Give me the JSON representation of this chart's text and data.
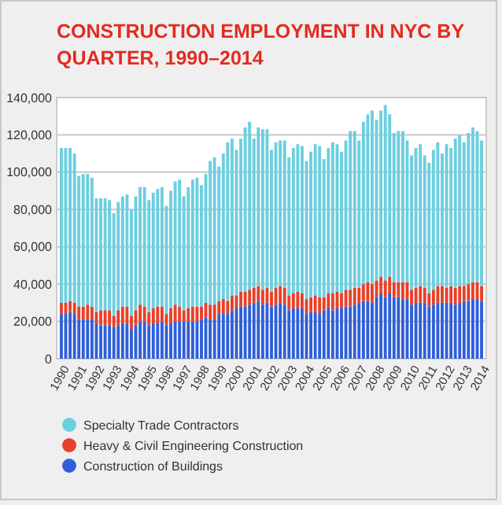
{
  "chart_data": {
    "type": "bar",
    "stacked": true,
    "title": "CONSTRUCTION EMPLOYMENT IN NYC BY QUARTER, 1990–2014",
    "categories": [
      "1990",
      null,
      null,
      null,
      "1991",
      null,
      null,
      null,
      "1992",
      null,
      null,
      null,
      "1993",
      null,
      null,
      null,
      "1994",
      null,
      null,
      null,
      "1995",
      null,
      null,
      null,
      "1996",
      null,
      null,
      null,
      "1997",
      null,
      null,
      null,
      "1998",
      null,
      null,
      null,
      "1999",
      null,
      null,
      null,
      "2000",
      null,
      null,
      null,
      "2001",
      null,
      null,
      null,
      "2002",
      null,
      null,
      null,
      "2003",
      null,
      null,
      null,
      "2004",
      null,
      null,
      null,
      "2005",
      null,
      null,
      null,
      "2006",
      null,
      null,
      null,
      "2007",
      null,
      null,
      null,
      "2008",
      null,
      null,
      null,
      "2009",
      null,
      null,
      null,
      "2010",
      null,
      null,
      null,
      "2011",
      null,
      null,
      null,
      "2012",
      null,
      null,
      null,
      "2013",
      null,
      null,
      null,
      "2014"
    ],
    "series": [
      {
        "name": "Construction of Buildings",
        "color": "#2f5fd8",
        "values": [
          24000,
          24000,
          25000,
          24000,
          21000,
          21000,
          21000,
          21000,
          19000,
          18000,
          18000,
          18000,
          17000,
          18000,
          19000,
          19000,
          16000,
          18000,
          20000,
          20000,
          18000,
          19000,
          19000,
          20000,
          18000,
          19000,
          20000,
          20000,
          20000,
          20000,
          20000,
          20000,
          21000,
          22000,
          21000,
          21000,
          24000,
          24000,
          24000,
          26000,
          27000,
          28000,
          28000,
          29000,
          30000,
          31000,
          29000,
          30000,
          28000,
          29000,
          30000,
          29000,
          26000,
          27000,
          27000,
          27000,
          24000,
          25000,
          25000,
          24000,
          26000,
          27000,
          26000,
          27000,
          27000,
          28000,
          28000,
          29000,
          30000,
          31000,
          31000,
          30000,
          33000,
          35000,
          33000,
          35000,
          33000,
          33000,
          32000,
          32000,
          29000,
          30000,
          30000,
          30000,
          28000,
          29000,
          30000,
          30000,
          30000,
          30000,
          29000,
          30000,
          31000,
          31000,
          32000,
          32000,
          31000
        ]
      },
      {
        "name": "Heavy & Civil Engineering Construction",
        "color": "#e8402a",
        "values": [
          6000,
          6000,
          6000,
          6000,
          7000,
          7000,
          8000,
          7000,
          6000,
          8000,
          8000,
          8000,
          6000,
          8000,
          9000,
          9000,
          7000,
          8000,
          9000,
          8000,
          7000,
          8000,
          9000,
          8000,
          6000,
          8000,
          9000,
          8000,
          6000,
          7000,
          8000,
          8000,
          7000,
          8000,
          8000,
          8000,
          7000,
          8000,
          7000,
          8000,
          7000,
          8000,
          8000,
          8000,
          8000,
          8000,
          8000,
          8000,
          8000,
          9000,
          9000,
          9000,
          8000,
          8000,
          9000,
          8000,
          8000,
          8000,
          9000,
          9000,
          7000,
          8000,
          9000,
          9000,
          8000,
          9000,
          9000,
          9000,
          8000,
          9000,
          10000,
          10000,
          9000,
          9000,
          9000,
          9000,
          8000,
          8000,
          9000,
          9000,
          8000,
          8000,
          9000,
          8000,
          7000,
          8000,
          9000,
          9000,
          8000,
          9000,
          9000,
          9000,
          8000,
          9000,
          9000,
          9000,
          8000
        ]
      },
      {
        "name": "Specialty Trade Contractors",
        "color": "#6ccfdf",
        "values": [
          83000,
          83000,
          82000,
          80000,
          70000,
          71000,
          70000,
          69000,
          61000,
          60000,
          60000,
          59000,
          55000,
          58000,
          59000,
          60000,
          57000,
          61000,
          63000,
          64000,
          60000,
          62000,
          63000,
          64000,
          58000,
          63000,
          66000,
          68000,
          61000,
          65000,
          68000,
          69000,
          65000,
          69000,
          77000,
          79000,
          72000,
          78000,
          85000,
          84000,
          78000,
          82000,
          88000,
          90000,
          80000,
          85000,
          86000,
          85000,
          76000,
          78000,
          78000,
          79000,
          74000,
          78000,
          79000,
          79000,
          74000,
          78000,
          81000,
          81000,
          74000,
          78000,
          81000,
          79000,
          76000,
          80000,
          85000,
          84000,
          79000,
          87000,
          90000,
          93000,
          86000,
          89000,
          94000,
          87000,
          80000,
          81000,
          81000,
          76000,
          72000,
          75000,
          76000,
          71000,
          70000,
          75000,
          77000,
          71000,
          77000,
          74000,
          80000,
          81000,
          77000,
          81000,
          83000,
          81000,
          78000
        ]
      }
    ],
    "ylim": [
      0,
      140000
    ],
    "yticks": [
      0,
      {
        "value": 20000,
        "label": "20,000"
      },
      {
        "value": 40000,
        "label": "40,000"
      },
      {
        "value": 60000,
        "label": "60,000"
      },
      {
        "value": 80000,
        "label": "80,000"
      },
      {
        "value": 100000,
        "label": "100,000"
      },
      {
        "value": 120000,
        "label": "120,000"
      },
      {
        "value": 140000,
        "label": "140,000"
      }
    ],
    "grid": "y",
    "legend": "bottom"
  }
}
